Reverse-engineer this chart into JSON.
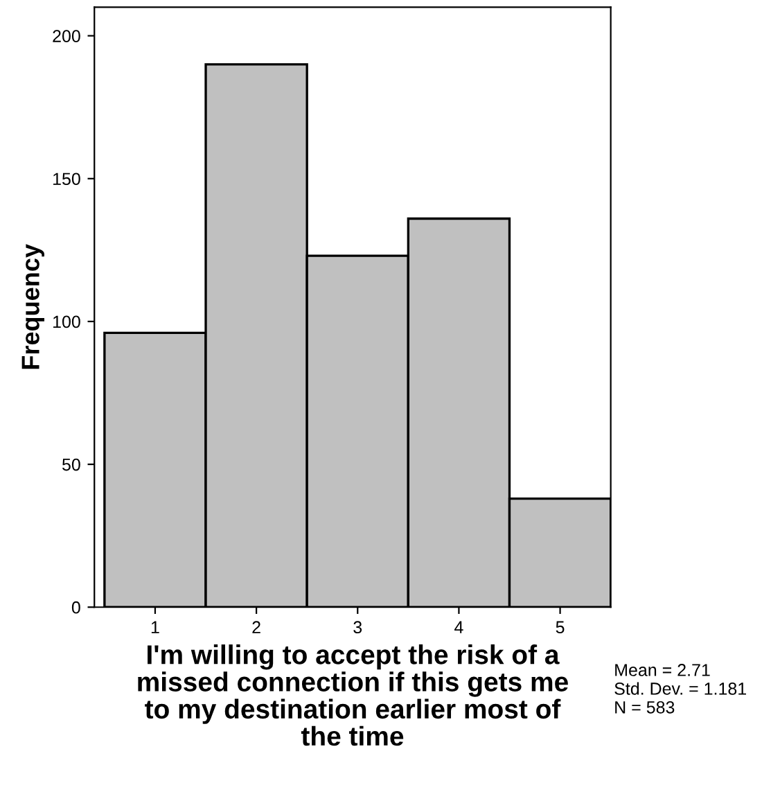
{
  "chart_data": {
    "type": "histogram",
    "xlabel": "I'm willing to accept the risk of a\nmissed connection if this gets me\nto my destination earlier most of\nthe time",
    "ylabel": "Frequency",
    "bins": [
      0.5,
      1.5,
      2.5,
      3.5,
      4.5,
      5.5
    ],
    "values": [
      96,
      190,
      123,
      136,
      38
    ],
    "color": "#c0c0c0",
    "xlim": [
      0.4,
      5.5
    ],
    "xticks": [
      1,
      2,
      3,
      4,
      5
    ],
    "ylim": [
      0,
      210
    ],
    "yticks": [
      0,
      50,
      100,
      150,
      200
    ],
    "grid": false,
    "annotations": [
      "Mean = 2.71\nStd. Dev. = 1.181\nN = 583"
    ]
  }
}
